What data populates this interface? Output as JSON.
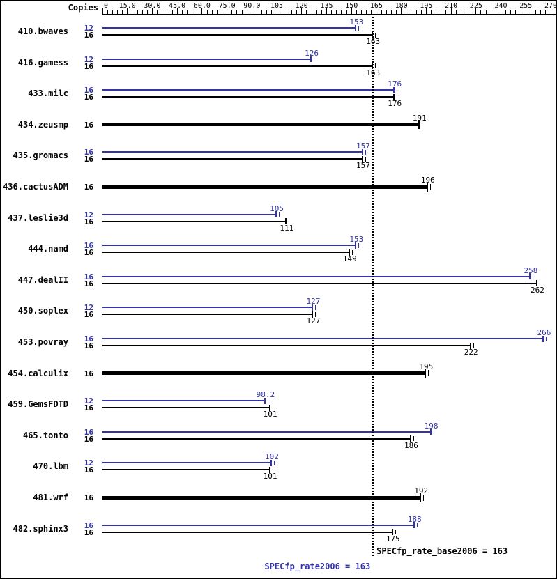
{
  "chart_data": {
    "type": "bar",
    "orientation": "horizontal",
    "copies_header": "Copies",
    "xlim": [
      0,
      270
    ],
    "minor_tick_step": 3,
    "grid": false,
    "colors": {
      "peak": "#3434aa",
      "base": "#000000"
    },
    "x_ticks": [
      {
        "value": 0,
        "label": "0"
      },
      {
        "value": 15,
        "label": "15.0"
      },
      {
        "value": 30,
        "label": "30.0"
      },
      {
        "value": 45,
        "label": "45.0"
      },
      {
        "value": 60,
        "label": "60.0"
      },
      {
        "value": 75,
        "label": "75.0"
      },
      {
        "value": 90,
        "label": "90.0"
      },
      {
        "value": 105,
        "label": "105"
      },
      {
        "value": 120,
        "label": "120"
      },
      {
        "value": 135,
        "label": "135"
      },
      {
        "value": 150,
        "label": "150"
      },
      {
        "value": 165,
        "label": "165"
      },
      {
        "value": 180,
        "label": "180"
      },
      {
        "value": 195,
        "label": "195"
      },
      {
        "value": 210,
        "label": "210"
      },
      {
        "value": 225,
        "label": "225"
      },
      {
        "value": 240,
        "label": "240"
      },
      {
        "value": 255,
        "label": "255"
      },
      {
        "value": 270,
        "label": "270"
      }
    ],
    "reference_line": {
      "value": 163
    },
    "footer": {
      "base_text": "SPECfp_rate_base2006 = 163",
      "peak_text": "SPECfp_rate2006 = 163"
    },
    "benchmarks": [
      {
        "name": "410.bwaves",
        "bars": [
          {
            "kind": "peak",
            "copies": "12",
            "value": 153,
            "label": "153"
          },
          {
            "kind": "base",
            "copies": "16",
            "value": 163,
            "label": "163"
          }
        ]
      },
      {
        "name": "416.gamess",
        "bars": [
          {
            "kind": "peak",
            "copies": "12",
            "value": 126,
            "label": "126"
          },
          {
            "kind": "base",
            "copies": "16",
            "value": 163,
            "label": "163"
          }
        ]
      },
      {
        "name": "433.milc",
        "bars": [
          {
            "kind": "peak",
            "copies": "16",
            "value": 176,
            "label": "176"
          },
          {
            "kind": "base",
            "copies": "16",
            "value": 176,
            "label": "176"
          }
        ]
      },
      {
        "name": "434.zeusmp",
        "bars": [
          {
            "kind": "base",
            "copies": "16",
            "value": 191,
            "label": "191"
          }
        ]
      },
      {
        "name": "435.gromacs",
        "bars": [
          {
            "kind": "peak",
            "copies": "16",
            "value": 157,
            "label": "157"
          },
          {
            "kind": "base",
            "copies": "16",
            "value": 157,
            "label": "157"
          }
        ]
      },
      {
        "name": "436.cactusADM",
        "bars": [
          {
            "kind": "base",
            "copies": "16",
            "value": 196,
            "label": "196"
          }
        ]
      },
      {
        "name": "437.leslie3d",
        "bars": [
          {
            "kind": "peak",
            "copies": "12",
            "value": 105,
            "label": "105"
          },
          {
            "kind": "base",
            "copies": "16",
            "value": 111,
            "label": "111"
          }
        ]
      },
      {
        "name": "444.namd",
        "bars": [
          {
            "kind": "peak",
            "copies": "16",
            "value": 153,
            "label": "153"
          },
          {
            "kind": "base",
            "copies": "16",
            "value": 149,
            "label": "149"
          }
        ]
      },
      {
        "name": "447.dealII",
        "bars": [
          {
            "kind": "peak",
            "copies": "16",
            "value": 258,
            "label": "258"
          },
          {
            "kind": "base",
            "copies": "16",
            "value": 262,
            "label": "262"
          }
        ]
      },
      {
        "name": "450.soplex",
        "bars": [
          {
            "kind": "peak",
            "copies": "12",
            "value": 127,
            "label": "127"
          },
          {
            "kind": "base",
            "copies": "16",
            "value": 127,
            "label": "127"
          }
        ]
      },
      {
        "name": "453.povray",
        "bars": [
          {
            "kind": "peak",
            "copies": "16",
            "value": 266,
            "label": "266"
          },
          {
            "kind": "base",
            "copies": "16",
            "value": 222,
            "label": "222"
          }
        ]
      },
      {
        "name": "454.calculix",
        "bars": [
          {
            "kind": "base",
            "copies": "16",
            "value": 195,
            "label": "195"
          }
        ]
      },
      {
        "name": "459.GemsFDTD",
        "bars": [
          {
            "kind": "peak",
            "copies": "12",
            "value": 98.2,
            "label": "98.2"
          },
          {
            "kind": "base",
            "copies": "16",
            "value": 101,
            "label": "101"
          }
        ]
      },
      {
        "name": "465.tonto",
        "bars": [
          {
            "kind": "peak",
            "copies": "16",
            "value": 198,
            "label": "198"
          },
          {
            "kind": "base",
            "copies": "16",
            "value": 186,
            "label": "186"
          }
        ]
      },
      {
        "name": "470.lbm",
        "bars": [
          {
            "kind": "peak",
            "copies": "12",
            "value": 102,
            "label": "102"
          },
          {
            "kind": "base",
            "copies": "16",
            "value": 101,
            "label": "101"
          }
        ]
      },
      {
        "name": "481.wrf",
        "bars": [
          {
            "kind": "base",
            "copies": "16",
            "value": 192,
            "label": "192"
          }
        ]
      },
      {
        "name": "482.sphinx3",
        "bars": [
          {
            "kind": "peak",
            "copies": "16",
            "value": 188,
            "label": "188"
          },
          {
            "kind": "base",
            "copies": "16",
            "value": 175,
            "label": "175"
          }
        ]
      }
    ]
  }
}
